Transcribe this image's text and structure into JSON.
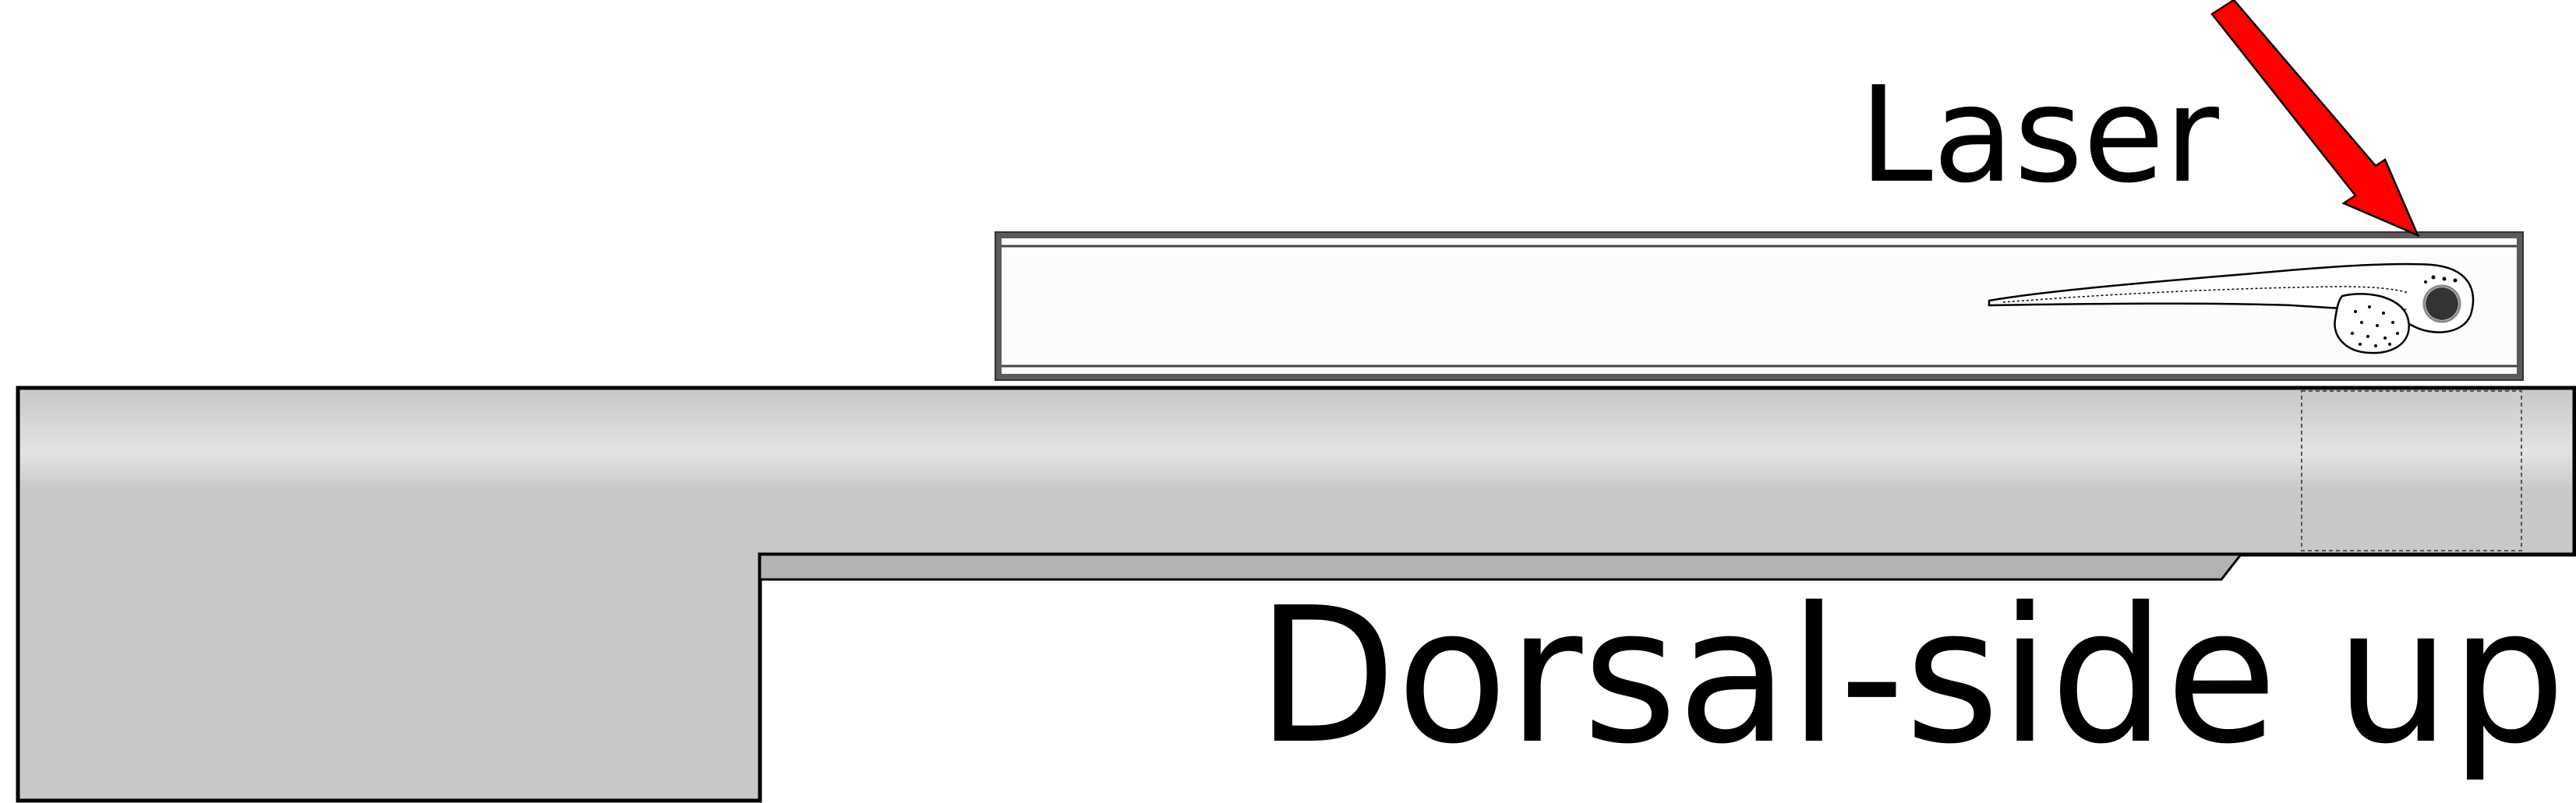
{
  "labels": {
    "laser": "Laser",
    "orientation": "Dorsal-side up"
  },
  "colors": {
    "laser_arrow": "#ff0000",
    "holder_fill": "#c8c8c8",
    "groove_fill": "#b3b3b3",
    "capillary_frame": "#5a5a5a",
    "capillary_fill": "#fcfcfa",
    "outline": "#000000"
  },
  "icons": {
    "laser": "red-arrow-icon",
    "specimen": "zebrafish-larva-icon"
  }
}
